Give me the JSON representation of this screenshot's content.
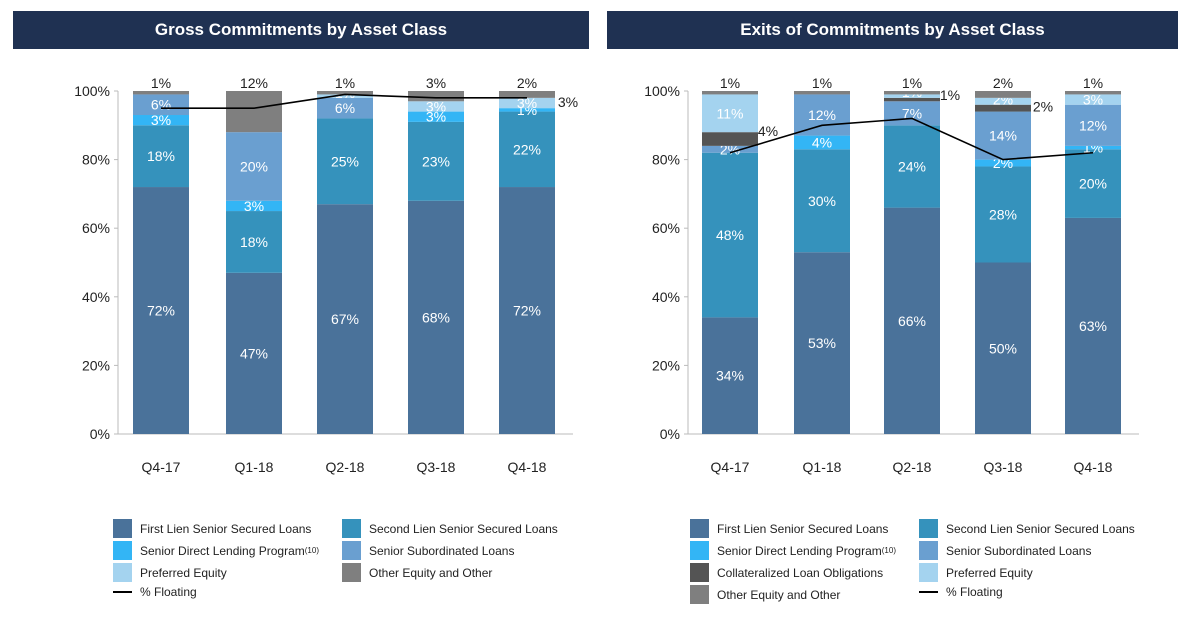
{
  "chart_data": [
    {
      "type": "bar",
      "stacked": true,
      "title": "Gross Commitments by Asset Class",
      "categories": [
        "Q4-17",
        "Q1-18",
        "Q2-18",
        "Q3-18",
        "Q4-18"
      ],
      "y_ticks": [
        "0%",
        "20%",
        "40%",
        "60%",
        "80%",
        "100%"
      ],
      "ylim": [
        0,
        100
      ],
      "series": [
        {
          "name": "First Lien Senior Secured Loans",
          "color": "#4a729a",
          "values": [
            72,
            47,
            67,
            68,
            72
          ],
          "labels": [
            "72%",
            "47%",
            "67%",
            "68%",
            "72%"
          ]
        },
        {
          "name": "Second Lien Senior Secured Loans",
          "color": "#3592bc",
          "values": [
            18,
            18,
            25,
            23,
            22
          ],
          "labels": [
            "18%",
            "18%",
            "25%",
            "23%",
            "22%"
          ]
        },
        {
          "name": "Senior Direct Lending Program",
          "name_sup": "(10)",
          "color": "#33b5f5",
          "values": [
            3,
            3,
            0,
            3,
            1
          ],
          "labels": [
            "3%",
            "3%",
            "",
            "3%",
            "1%"
          ]
        },
        {
          "name": "Senior Subordinated Loans",
          "color": "#6a9fd0",
          "values": [
            6,
            20,
            6,
            0,
            0
          ],
          "labels": [
            "6%",
            "20%",
            "6%",
            "",
            ""
          ]
        },
        {
          "name": "Preferred Equity",
          "color": "#a4d3ef",
          "values": [
            0,
            0,
            1,
            3,
            3
          ],
          "labels": [
            "",
            "",
            "1%",
            "3%",
            "3%"
          ]
        },
        {
          "name": "Other Equity and Other",
          "color": "#7f7f7f",
          "values": [
            1,
            12,
            1,
            3,
            2
          ],
          "labels": [
            "1%",
            "12%",
            "1%",
            "3%",
            "2%"
          ]
        }
      ],
      "floating": {
        "name": "% Floating",
        "values": [
          95,
          95,
          99,
          98,
          98
        ]
      }
    },
    {
      "type": "bar",
      "stacked": true,
      "title": "Exits of Commitments by Asset Class",
      "categories": [
        "Q4-17",
        "Q1-18",
        "Q2-18",
        "Q3-18",
        "Q4-18"
      ],
      "y_ticks": [
        "0%",
        "20%",
        "40%",
        "60%",
        "80%",
        "100%"
      ],
      "ylim": [
        0,
        100
      ],
      "series": [
        {
          "name": "First Lien Senior Secured Loans",
          "color": "#4a729a",
          "values": [
            34,
            53,
            66,
            50,
            63
          ],
          "labels": [
            "34%",
            "53%",
            "66%",
            "50%",
            "63%"
          ]
        },
        {
          "name": "Second Lien Senior Secured Loans",
          "color": "#3592bc",
          "values": [
            48,
            30,
            24,
            28,
            20
          ],
          "labels": [
            "48%",
            "30%",
            "24%",
            "28%",
            "20%"
          ]
        },
        {
          "name": "Senior Direct Lending Program",
          "name_sup": "(10)",
          "color": "#33b5f5",
          "values": [
            0,
            4,
            0,
            2,
            1
          ],
          "labels": [
            "",
            "4%",
            "",
            "2%",
            "1%"
          ]
        },
        {
          "name": "Senior Subordinated Loans",
          "color": "#6a9fd0",
          "values": [
            2,
            12,
            7,
            14,
            12
          ],
          "labels": [
            "2%",
            "12%",
            "7%",
            "14%",
            "12%"
          ]
        },
        {
          "name": "Collateralized Loan Obligations",
          "color": "#545454",
          "values": [
            4,
            0,
            1,
            2,
            0
          ],
          "labels": [
            "4%",
            "",
            "1%",
            "2%",
            ""
          ]
        },
        {
          "name": "Preferred Equity",
          "color": "#a4d3ef",
          "values": [
            11,
            0,
            1,
            2,
            3
          ],
          "labels": [
            "11%",
            "",
            "1%",
            "2%",
            "3%"
          ]
        },
        {
          "name": "Other Equity and Other",
          "color": "#7f7f7f",
          "values": [
            1,
            1,
            1,
            2,
            1
          ],
          "labels": [
            "1%",
            "1%",
            "1%",
            "2%",
            "1%"
          ]
        }
      ],
      "floating": {
        "name": "% Floating",
        "values": [
          82,
          90,
          92,
          80,
          82
        ]
      }
    }
  ],
  "legends": [
    {
      "items": [
        {
          "label": "First Lien Senior Secured Loans",
          "color": "#4a729a"
        },
        {
          "label": "Second Lien Senior Secured Loans",
          "color": "#3592bc"
        },
        {
          "label": "Senior Direct Lending Program",
          "sup": "(10)",
          "color": "#33b5f5"
        },
        {
          "label": "Senior Subordinated Loans",
          "color": "#6a9fd0"
        },
        {
          "label": "Preferred Equity",
          "color": "#a4d3ef"
        },
        {
          "label": "Other Equity and Other",
          "color": "#7f7f7f"
        },
        {
          "label": "% Floating",
          "line": true
        }
      ]
    },
    {
      "items": [
        {
          "label": "First Lien Senior Secured Loans",
          "color": "#4a729a"
        },
        {
          "label": "Second Lien Senior Secured Loans",
          "color": "#3592bc"
        },
        {
          "label": "Senior Direct Lending Program",
          "sup": "(10)",
          "color": "#33b5f5"
        },
        {
          "label": "Senior Subordinated Loans",
          "color": "#6a9fd0"
        },
        {
          "label": "Collateralized Loan Obligations",
          "color": "#545454"
        },
        {
          "label": "Preferred Equity",
          "color": "#a4d3ef"
        },
        {
          "label": "Other Equity and Other",
          "color": "#7f7f7f"
        },
        {
          "label": "% Floating",
          "line": true
        }
      ]
    }
  ]
}
